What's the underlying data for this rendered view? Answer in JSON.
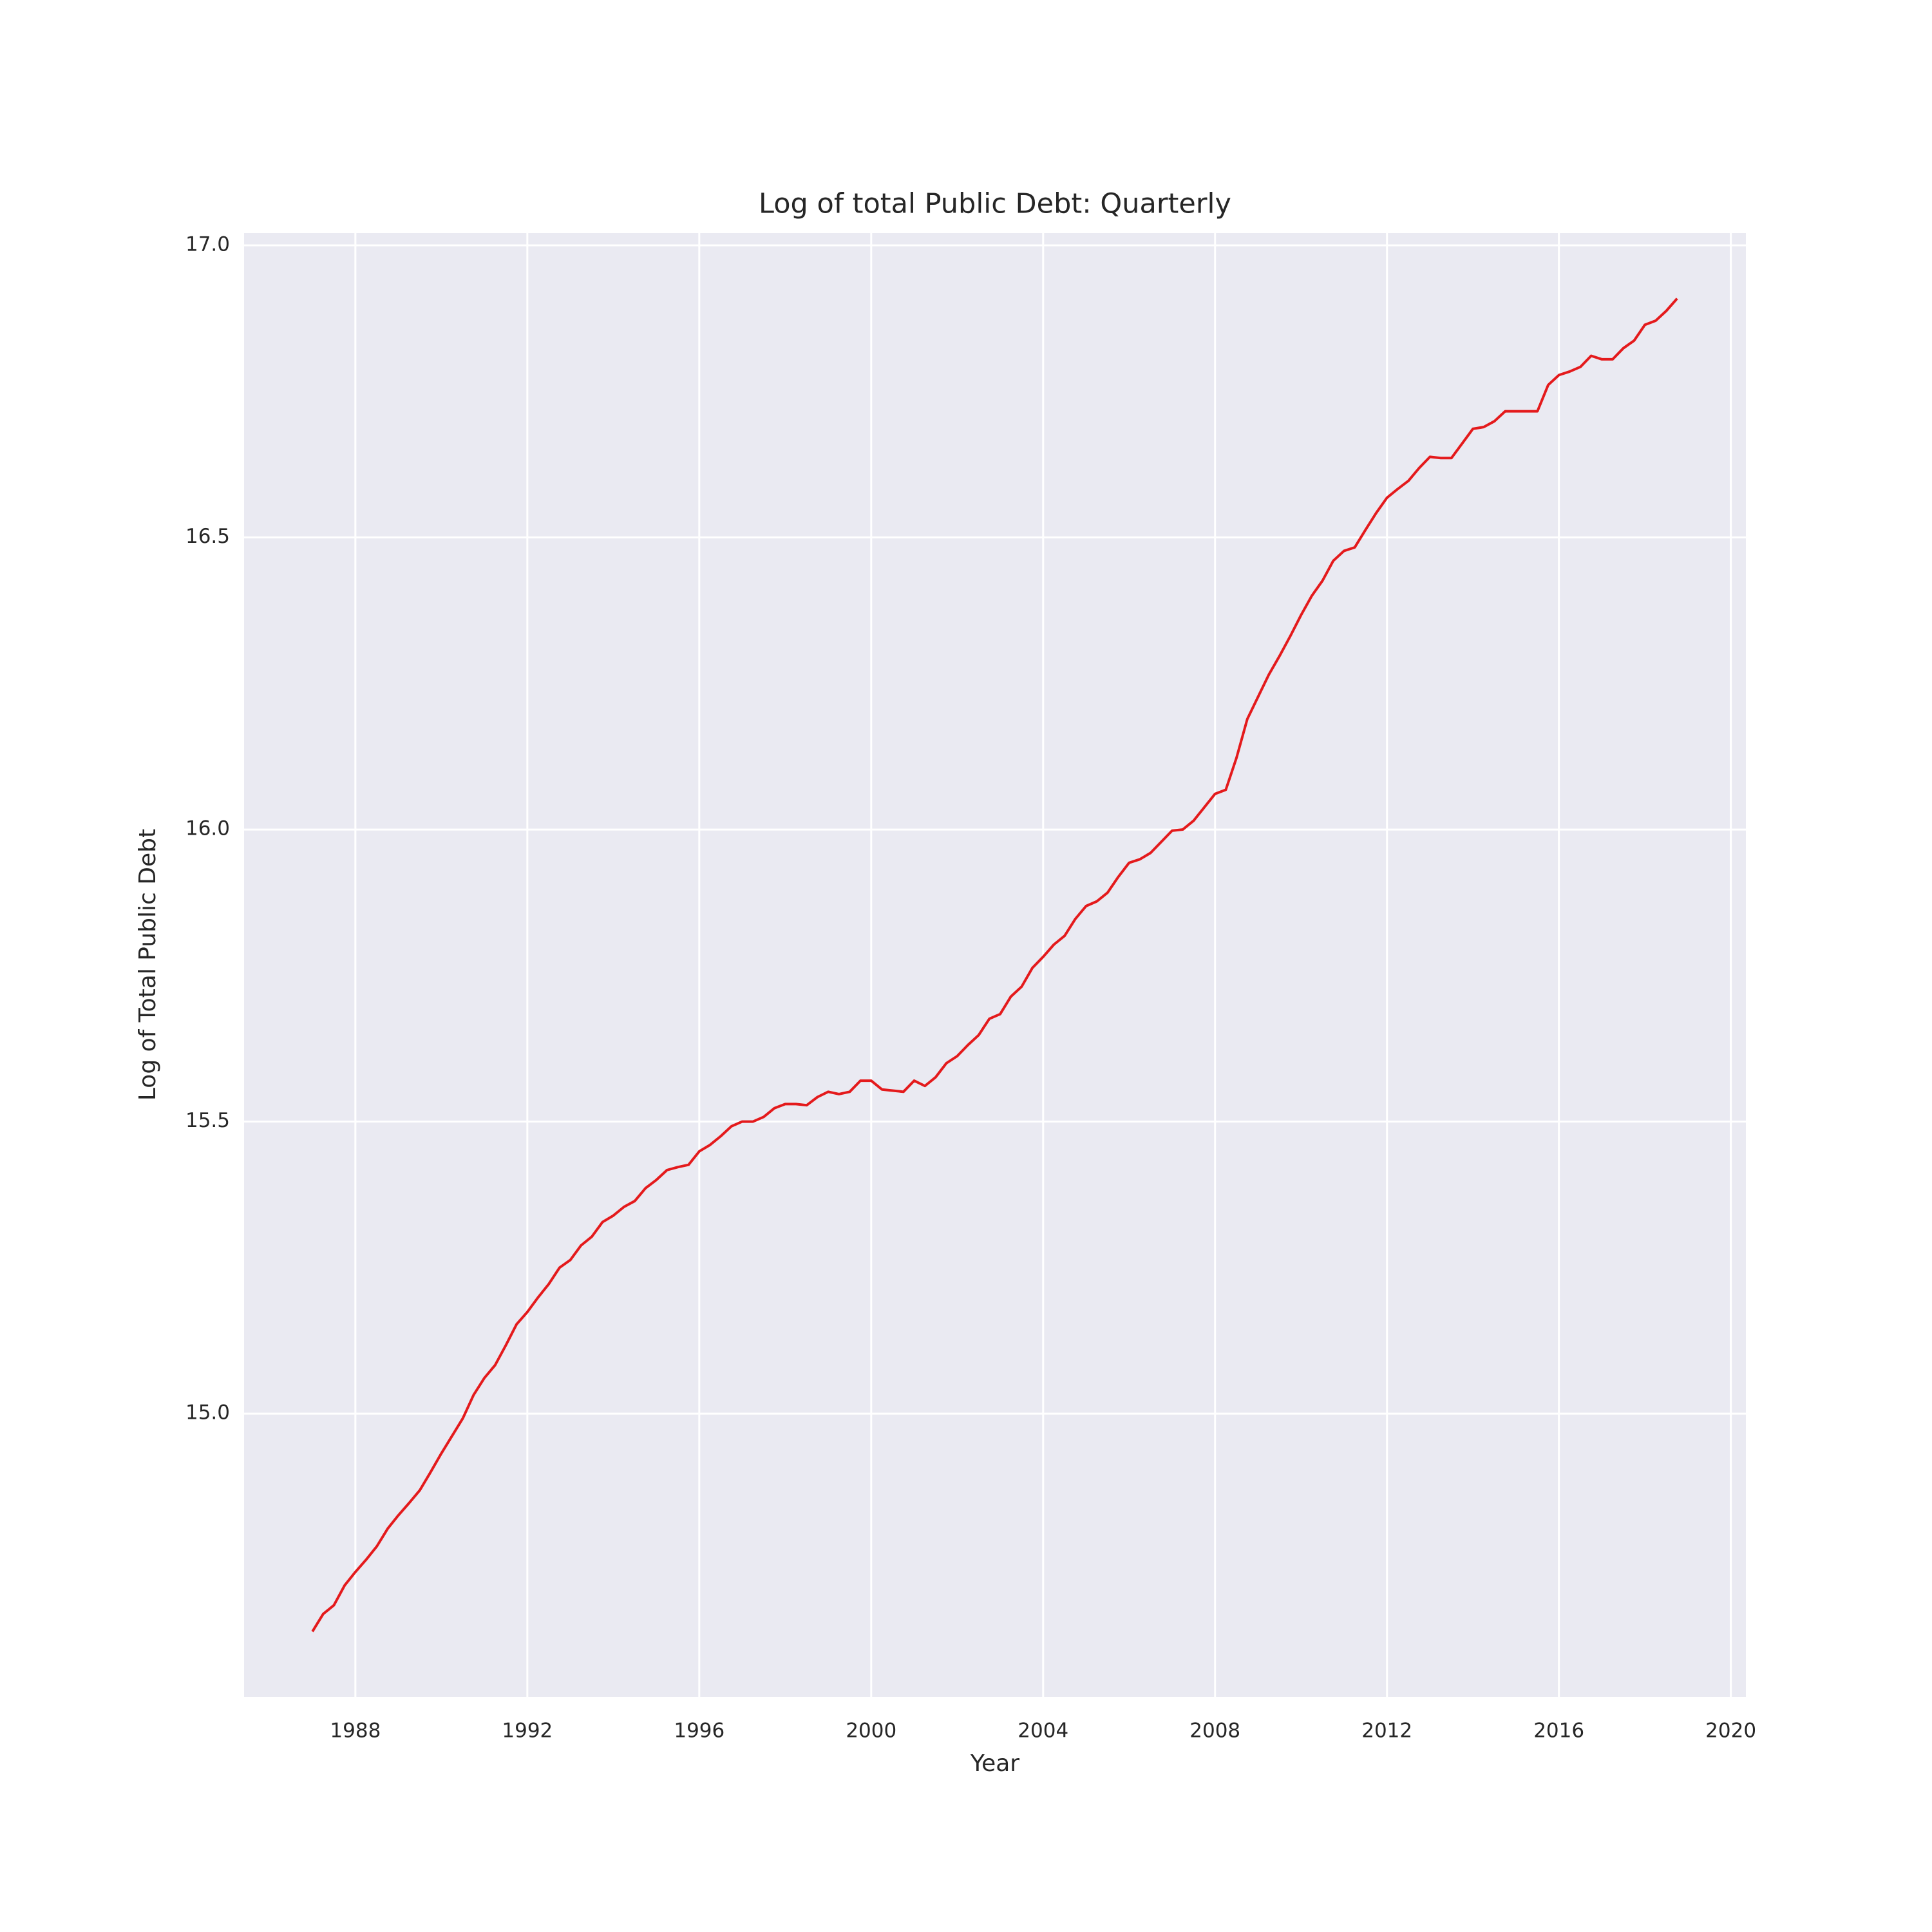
{
  "chart_data": {
    "type": "line",
    "title": "Log of total Public Debt: Quarterly",
    "x_label": "Year",
    "y_label": "Log of Total Public Debt",
    "grid": true,
    "xlim": [
      1985.41,
      2020.35
    ],
    "ylim": [
      14.515,
      17.021
    ],
    "xticks": [
      1988,
      1992,
      1996,
      2000,
      2004,
      2008,
      2012,
      2016,
      2020
    ],
    "yticks": [
      {
        "value": 15.0,
        "label": "15.0"
      },
      15.5,
      {
        "value": 16.0,
        "label": "16.0"
      },
      16.5,
      {
        "value": 17.0,
        "label": "17.0"
      }
    ],
    "x": [
      1987,
      1987.25,
      1987.5,
      1987.75,
      1988,
      1988.25,
      1988.5,
      1988.75,
      1989,
      1989.25,
      1989.5,
      1989.75,
      1990,
      1990.25,
      1990.5,
      1990.75,
      1991,
      1991.25,
      1991.5,
      1991.75,
      1992,
      1992.25,
      1992.5,
      1992.75,
      1993,
      1993.25,
      1993.5,
      1993.75,
      1994,
      1994.25,
      1994.5,
      1994.75,
      1995,
      1995.25,
      1995.5,
      1995.75,
      1996,
      1996.25,
      1996.5,
      1996.75,
      1997,
      1997.25,
      1997.5,
      1997.75,
      1998,
      1998.25,
      1998.5,
      1998.75,
      1999,
      1999.25,
      1999.5,
      1999.75,
      2000,
      2000.25,
      2000.5,
      2000.75,
      2001,
      2001.25,
      2001.5,
      2001.75,
      2002,
      2002.25,
      2002.5,
      2002.75,
      2003,
      2003.25,
      2003.5,
      2003.75,
      2004,
      2004.25,
      2004.5,
      2004.75,
      2005,
      2005.25,
      2005.5,
      2005.75,
      2006,
      2006.25,
      2006.5,
      2006.75,
      2007,
      2007.25,
      2007.5,
      2007.75,
      2008,
      2008.25,
      2008.5,
      2008.75,
      2009,
      2009.25,
      2009.5,
      2009.75,
      2010,
      2010.25,
      2010.5,
      2010.75,
      2011,
      2011.25,
      2011.5,
      2011.75,
      2012,
      2012.25,
      2012.5,
      2012.75,
      2013,
      2013.25,
      2013.5,
      2013.75,
      2014,
      2014.25,
      2014.5,
      2014.75,
      2015,
      2015.25,
      2015.5,
      2015.75,
      2016,
      2016.25,
      2016.5,
      2016.75,
      2017,
      2017.25,
      2017.5,
      2017.75,
      2018,
      2018.25,
      2018.5,
      2018.75
    ],
    "series": [
      {
        "color": "#e41a1c",
        "values": [
          14.627,
          14.657,
          14.672,
          14.706,
          14.729,
          14.75,
          14.773,
          14.803,
          14.826,
          14.847,
          14.869,
          14.9,
          14.932,
          14.962,
          14.992,
          15.032,
          15.061,
          15.083,
          15.117,
          15.153,
          15.174,
          15.199,
          15.222,
          15.25,
          15.263,
          15.288,
          15.303,
          15.328,
          15.339,
          15.354,
          15.364,
          15.386,
          15.4,
          15.417,
          15.422,
          15.426,
          15.449,
          15.46,
          15.475,
          15.492,
          15.5,
          15.5,
          15.508,
          15.523,
          15.53,
          15.53,
          15.528,
          15.542,
          15.551,
          15.547,
          15.551,
          15.57,
          15.57,
          15.555,
          15.553,
          15.551,
          15.57,
          15.561,
          15.576,
          15.6,
          15.612,
          15.631,
          15.648,
          15.676,
          15.684,
          15.714,
          15.731,
          15.763,
          15.782,
          15.803,
          15.818,
          15.847,
          15.869,
          15.877,
          15.892,
          15.919,
          15.943,
          15.949,
          15.96,
          15.979,
          15.998,
          16.0,
          16.015,
          16.038,
          16.061,
          16.068,
          16.123,
          16.189,
          16.227,
          16.265,
          16.297,
          16.331,
          16.367,
          16.4,
          16.426,
          16.46,
          16.477,
          16.483,
          16.513,
          16.542,
          16.568,
          16.583,
          16.597,
          16.619,
          16.638,
          16.636,
          16.636,
          16.661,
          16.686,
          16.689,
          16.699,
          16.716,
          16.716,
          16.716,
          16.716,
          16.761,
          16.778,
          16.784,
          16.792,
          16.811,
          16.805,
          16.805,
          16.824,
          16.837,
          16.864,
          16.871,
          16.888,
          16.909
        ]
      }
    ]
  }
}
